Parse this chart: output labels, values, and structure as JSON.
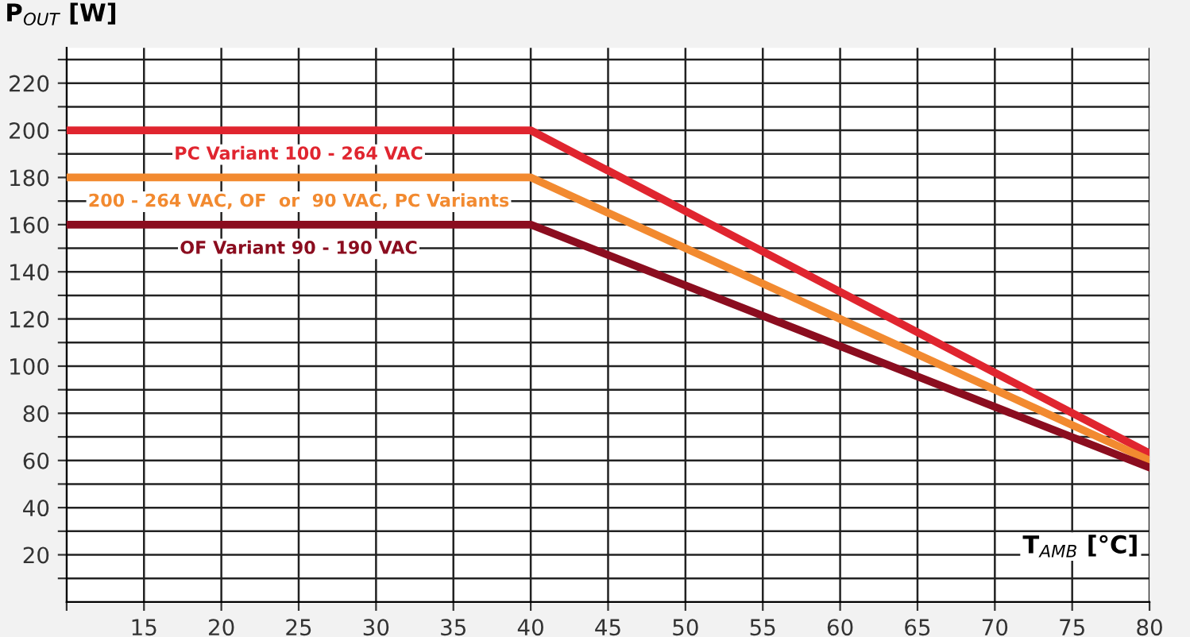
{
  "chart_data": {
    "type": "line",
    "xlabel": "T$_{AMB}$ [°C]",
    "ylabel": "P$_{OUT}$ [W]",
    "x": [
      10,
      40,
      80
    ],
    "series": [
      {
        "name": "PC Variant 100 - 264 VAC",
        "color": "#e0252f",
        "values": [
          200,
          200,
          63
        ]
      },
      {
        "name": "200 - 264 VAC, OF  or  90 VAC, PC Variants",
        "color": "#f28a30",
        "values": [
          180,
          180,
          60
        ]
      },
      {
        "name": "OF Variant 90 - 190 VAC",
        "color": "#8b0d1f",
        "values": [
          160,
          160,
          57
        ]
      }
    ],
    "xlim": [
      10,
      80
    ],
    "ylim": [
      0,
      235
    ],
    "xticks": [
      {
        "value": 10,
        "label": null
      },
      15,
      20,
      25,
      30,
      35,
      40,
      45,
      50,
      55,
      60,
      65,
      70,
      75,
      80
    ],
    "yticks": [
      {
        "value": 10,
        "label": null
      },
      20,
      {
        "value": 30,
        "label": null
      },
      40,
      {
        "value": 50,
        "label": null
      },
      60,
      {
        "value": 70,
        "label": null
      },
      80,
      {
        "value": 90,
        "label": null
      },
      100,
      {
        "value": 110,
        "label": null
      },
      120,
      {
        "value": 130,
        "label": null
      },
      140,
      {
        "value": 150,
        "label": null
      },
      160,
      {
        "value": 170,
        "label": null
      },
      180,
      {
        "value": 190,
        "label": null
      },
      200,
      {
        "value": 210,
        "label": null
      },
      220,
      {
        "value": 230,
        "label": null
      }
    ],
    "grid": true,
    "legend": false,
    "marker": "none",
    "line_style": "solid"
  }
}
